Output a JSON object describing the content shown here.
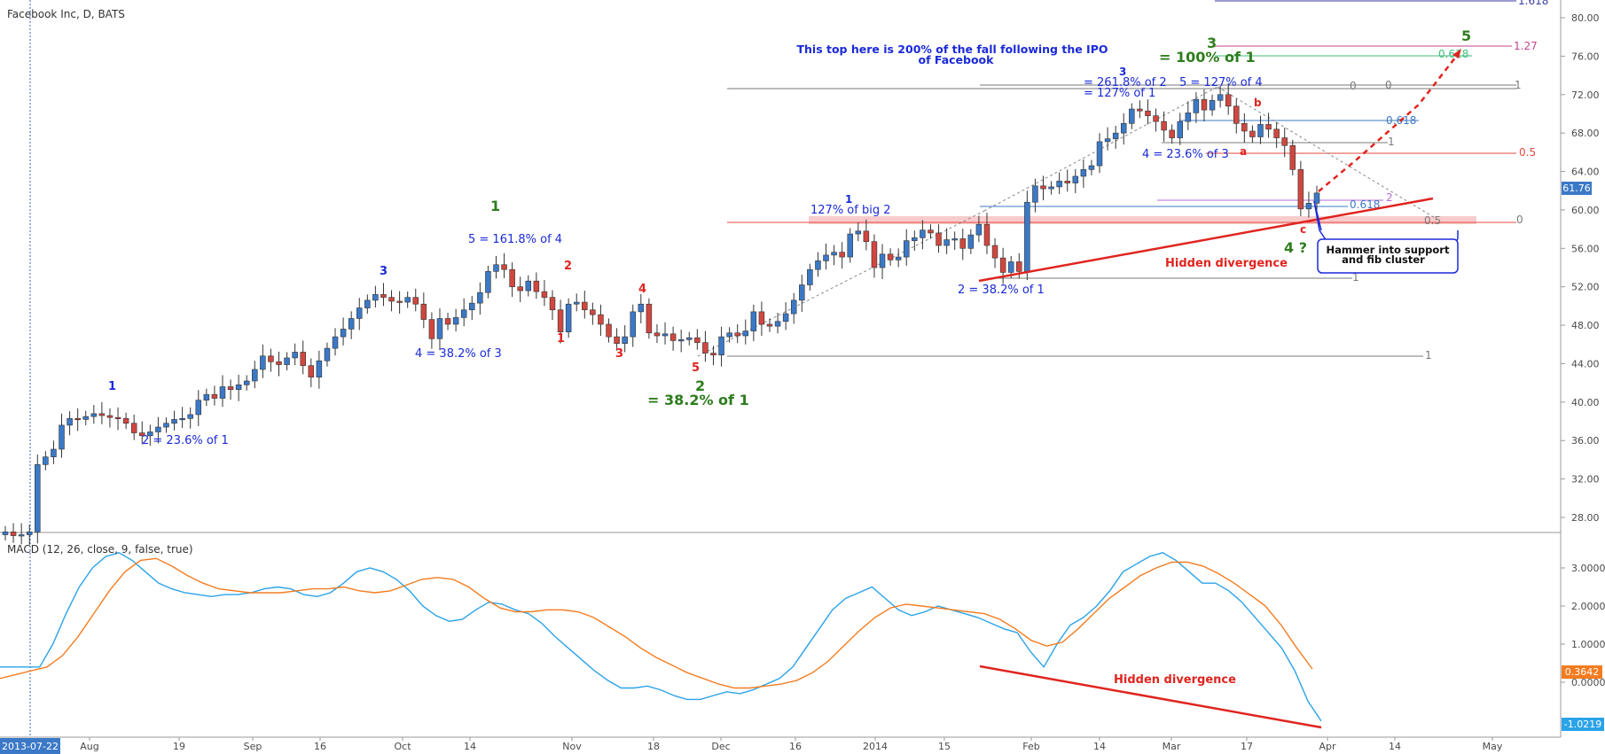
{
  "header": {
    "symbol": "Facebook Inc, D, BATS",
    "macd_title": "MACD (12, 26, close, 9, false, true)"
  },
  "chart_data": [
    {
      "type": "candlestick",
      "title": "Facebook Inc, D, BATS",
      "ylim": [
        24,
        82
      ],
      "yticks": [
        "28.00",
        "32.00",
        "36.00",
        "40.00",
        "44.00",
        "48.00",
        "52.00",
        "56.00",
        "60.00",
        "64.00",
        "68.00",
        "72.00",
        "76.00",
        "80.00"
      ],
      "ytick_values": [
        28,
        32,
        36,
        40,
        44,
        48,
        52,
        56,
        60,
        64,
        68,
        72,
        76,
        80
      ],
      "xticks": [
        "2013-07-22",
        "Aug",
        "19",
        "Sep",
        "16",
        "Oct",
        "14",
        "Nov",
        "18",
        "Dec",
        "16",
        "2014",
        "15",
        "Feb",
        "14",
        "Mar",
        "17",
        "Apr",
        "14",
        "May"
      ],
      "last_price": "61.76",
      "closes": [
        26.5,
        26.1,
        26.2,
        26.5,
        33.5,
        34.3,
        35.1,
        37.6,
        38.3,
        38.2,
        38.5,
        38.8,
        38.6,
        38.4,
        38.3,
        37.8,
        36.8,
        36.5,
        36.9,
        37.4,
        37.8,
        38.2,
        38.3,
        38.7,
        40.2,
        40.8,
        40.4,
        41.6,
        41.3,
        41.8,
        42.2,
        43.4,
        44.8,
        44.2,
        43.9,
        44.6,
        45.2,
        43.8,
        42.6,
        44.3,
        45.6,
        46.8,
        47.6,
        48.7,
        49.8,
        50.6,
        51.2,
        50.9,
        50.5,
        50.4,
        50.9,
        50.2,
        48.6,
        46.6,
        48.7,
        48.1,
        48.8,
        49.6,
        50.3,
        51.4,
        53.6,
        54.3,
        53.8,
        52.0,
        51.6,
        52.6,
        51.5,
        50.9,
        49.6,
        47.3,
        50.2,
        50.4,
        49.6,
        49.1,
        48.1,
        46.8,
        46.1,
        46.8,
        49.4,
        50.2,
        47.2,
        46.9,
        47.1,
        46.4,
        46.5,
        46.7,
        46.2,
        45.1,
        44.9,
        46.8,
        47.2,
        46.9,
        47.4,
        49.4,
        48.1,
        47.9,
        48.4,
        49.2,
        50.6,
        52.2,
        53.8,
        54.7,
        55.3,
        55.6,
        55.1,
        57.5,
        57.8,
        56.7,
        54.0,
        55.4,
        54.8,
        55.1,
        56.8,
        57.1,
        57.9,
        57.6,
        56.3,
        56.9,
        57.0,
        56.0,
        57.4,
        58.5,
        56.3,
        55.0,
        53.5,
        54.6,
        53.6,
        60.8,
        62.5,
        62.2,
        62.4,
        63.0,
        62.8,
        63.5,
        64.2,
        64.6,
        67.1,
        67.4,
        68.0,
        69.0,
        70.5,
        70.3,
        69.8,
        69.2,
        68.3,
        67.5,
        69.2,
        70.1,
        71.5,
        70.4,
        71.4,
        72.0,
        70.8,
        69.0,
        68.2,
        67.6,
        68.9,
        68.4,
        67.5,
        66.7,
        64.2,
        60.1,
        60.7,
        61.76
      ]
    },
    {
      "type": "line",
      "title": "MACD (12, 26, close, 9, false, true)",
      "ylim": [
        -1.25,
        3.75
      ],
      "yticks": [
        "-1.0219",
        "0.0000",
        "0.3642",
        "1.0000",
        "2.0000",
        "3.0000"
      ],
      "ytick_values": [
        0,
        1,
        2,
        3
      ],
      "series": [
        {
          "values": [
            0.4,
            0.4,
            0.4,
            0.4,
            1.0,
            1.8,
            2.5,
            3.0,
            3.3,
            3.4,
            3.2,
            2.9,
            2.6,
            2.45,
            2.35,
            2.3,
            2.25,
            2.3,
            2.3,
            2.35,
            2.45,
            2.5,
            2.45,
            2.3,
            2.25,
            2.35,
            2.6,
            2.9,
            3.0,
            2.9,
            2.7,
            2.4,
            2.0,
            1.75,
            1.6,
            1.65,
            1.9,
            2.1,
            2.05,
            1.9,
            1.8,
            1.55,
            1.2,
            0.9,
            0.6,
            0.3,
            0.05,
            -0.15,
            -0.15,
            -0.1,
            -0.2,
            -0.35,
            -0.45,
            -0.45,
            -0.35,
            -0.25,
            -0.3,
            -0.2,
            -0.05,
            0.1,
            0.4,
            0.9,
            1.4,
            1.9,
            2.2,
            2.35,
            2.5,
            2.2,
            1.9,
            1.75,
            1.85,
            2.0,
            1.9,
            1.8,
            1.7,
            1.55,
            1.4,
            1.3,
            0.8,
            0.4,
            1.0,
            1.5,
            1.7,
            2.0,
            2.4,
            2.9,
            3.1,
            3.3,
            3.4,
            3.2,
            2.9,
            2.6,
            2.6,
            2.4,
            2.1,
            1.7,
            1.3,
            0.9,
            0.3,
            -0.5,
            -1.02
          ]
        },
        {
          "values": [
            0.1,
            0.2,
            0.3,
            0.4,
            0.7,
            1.2,
            1.8,
            2.4,
            2.9,
            3.2,
            3.25,
            3.05,
            2.8,
            2.6,
            2.45,
            2.4,
            2.35,
            2.35,
            2.35,
            2.4,
            2.45,
            2.45,
            2.5,
            2.4,
            2.35,
            2.4,
            2.55,
            2.7,
            2.75,
            2.7,
            2.5,
            2.2,
            1.95,
            1.85,
            1.85,
            1.9,
            1.9,
            1.85,
            1.7,
            1.45,
            1.2,
            0.9,
            0.65,
            0.45,
            0.25,
            0.1,
            -0.05,
            -0.15,
            -0.15,
            -0.1,
            -0.05,
            0.05,
            0.25,
            0.55,
            0.95,
            1.35,
            1.7,
            1.95,
            2.05,
            2.0,
            1.95,
            1.9,
            1.85,
            1.8,
            1.65,
            1.4,
            1.1,
            0.95,
            1.05,
            1.4,
            1.8,
            2.2,
            2.5,
            2.8,
            3.0,
            3.15,
            3.15,
            3.05,
            2.85,
            2.6,
            2.3,
            2.0,
            1.5,
            0.9,
            0.35
          ]
        }
      ]
    }
  ],
  "annotations": {
    "top_note_line1": "This top here is 200% of the fall following the IPO",
    "top_note_line2": "of Facebook",
    "w1_blue": "1",
    "w2_blue": "2 = 23.6% of 1",
    "w3_blue": "3",
    "w4_blue": "4 = 38.2% of 3",
    "w5_blue": "5 = 161.8% of 4",
    "w1_green": "1",
    "w1_red": "1",
    "w2_red": "2",
    "w3_red": "3",
    "w4_red": "4",
    "w5_red": "5",
    "w2_green_num": "2",
    "w2_green_text": "= 38.2% of 1",
    "big2_blue1": "1",
    "big2_text": "127% of big 2",
    "b2_text": "2 = 38.2% of 1",
    "b3_blue": "3",
    "b3_text1": "= 261.8% of 2",
    "b3_text2": "= 127% of 1",
    "b5_text": "5 = 127% of 4",
    "g3_num": "3",
    "g3_text": "= 100% of 1",
    "g5_num": "5",
    "b4_text": "4 = 23.6% of 3",
    "wa": "a",
    "wb": "b",
    "wc": "c",
    "g4": "4 ?",
    "hidden_div_price": "Hidden divergence",
    "hidden_div_macd": "Hidden divergence",
    "hammer_line1": "Hammer into support",
    "hammer_line2": "and fib cluster"
  },
  "fib_labels": {
    "top_1618": "1.618",
    "top_127": "1.27",
    "top_0618_green": "0.618",
    "grey_0a": "0",
    "grey_0b": "0",
    "grey_1a": "1",
    "grey_1b": "1",
    "blue_0618a": "0.618",
    "red_05": "0.5",
    "blue_0618b": "0.618",
    "purple_2": "2",
    "red_05b": "0.5",
    "grey_0c": "0",
    "grey_1c": "1",
    "grey_1d": "1"
  },
  "colors": {
    "up": "#3b79c7",
    "down": "#d0473f",
    "macd": "#2aa3e8",
    "signal": "#f47c20",
    "annot_blue": "#1a2ad8",
    "annot_green": "#2e7d1e",
    "annot_red": "#e0241f"
  }
}
